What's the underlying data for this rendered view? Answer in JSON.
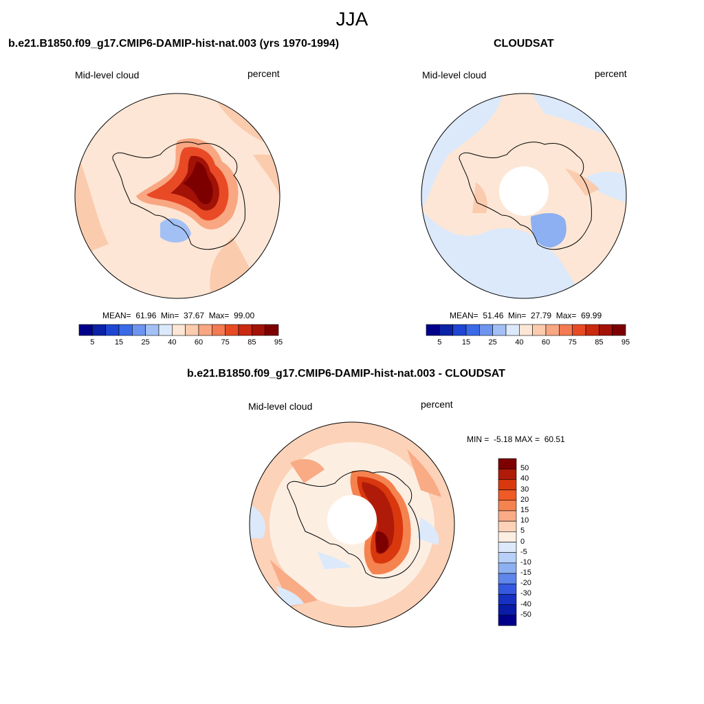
{
  "title": "JJA",
  "panels": [
    {
      "id": "model",
      "title": "b.e21.B1850.f09_g17.CMIP6-DAMIP-hist-nat.003 (yrs 1970-1994)",
      "left_label": "Mid-level cloud",
      "right_label": "percent",
      "stats": "MEAN=  61.96  Min=  37.67  Max=  99.00",
      "colorbar_ticks": [
        "5",
        "15",
        "25",
        "40",
        "60",
        "75",
        "85",
        "95"
      ]
    },
    {
      "id": "obs",
      "title": "CLOUDSAT",
      "left_label": "Mid-level cloud",
      "right_label": "percent",
      "stats": "MEAN=  51.46  Min=  27.79  Max=  69.99",
      "colorbar_ticks": [
        "5",
        "15",
        "25",
        "40",
        "60",
        "75",
        "85",
        "95"
      ]
    },
    {
      "id": "diff",
      "title": "b.e21.B1850.f09_g17.CMIP6-DAMIP-hist-nat.003 - CLOUDSAT",
      "left_label": "Mid-level cloud",
      "right_label": "percent",
      "stats": "MIN =  -5.18 MAX =  60.51",
      "colorbar_ticks": [
        "50",
        "40",
        "30",
        "20",
        "15",
        "10",
        "5",
        "0",
        "-5",
        "-10",
        "-15",
        "-20",
        "-30",
        "-40",
        "-50"
      ]
    }
  ],
  "colors": {
    "abs_scale": [
      "#00008b",
      "#0a23a6",
      "#1e46d2",
      "#3a6ae6",
      "#6d94ee",
      "#a3c0f5",
      "#dbe9fb",
      "#fde6d5",
      "#fbcbae",
      "#f8a782",
      "#f37a52",
      "#e84a25",
      "#c92a10",
      "#a31207",
      "#7d0000"
    ],
    "diff_scale": [
      "#7d0000",
      "#b01a08",
      "#d9380f",
      "#ef5a26",
      "#f58350",
      "#f9ab86",
      "#fcd2b8",
      "#fdeee2",
      "#dbe9fb",
      "#b6d0f7",
      "#8cb0f1",
      "#5f86ea",
      "#3459e0",
      "#1631c1",
      "#0a1ba8",
      "#00008b"
    ],
    "antarctica_coast": "#000000"
  }
}
